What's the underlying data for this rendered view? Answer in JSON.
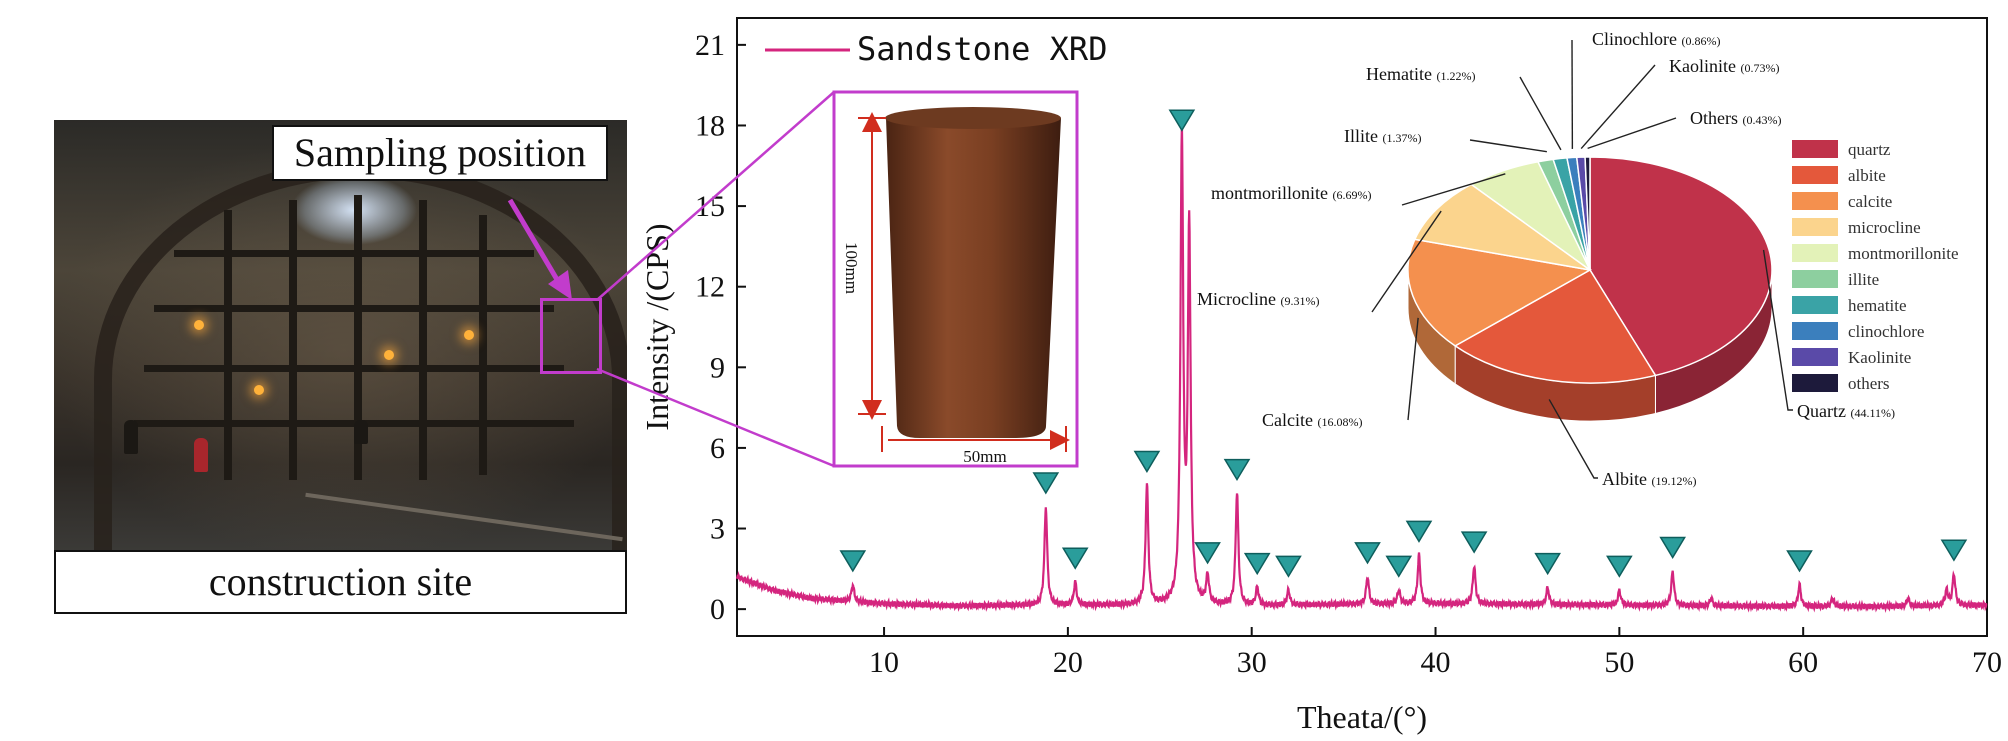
{
  "photo": {
    "sampling_label": "Sampling position",
    "caption": "construction site"
  },
  "sample": {
    "height_label": "100mm",
    "width_label": "50mm"
  },
  "chart_data": [
    {
      "type": "line",
      "series": [
        {
          "name": "Sandstone XRD",
          "color": "#d4257e",
          "background": [
            [
              2,
              1.2
            ],
            [
              4,
              0.7
            ],
            [
              6,
              0.4
            ],
            [
              8,
              0.3
            ],
            [
              10,
              0.2
            ],
            [
              14,
              0.12
            ],
            [
              18,
              0.15
            ],
            [
              22,
              0.15
            ],
            [
              26,
              0.15
            ],
            [
              30,
              0.12
            ],
            [
              35,
              0.18
            ],
            [
              40,
              0.2
            ],
            [
              45,
              0.18
            ],
            [
              50,
              0.15
            ],
            [
              55,
              0.12
            ],
            [
              60,
              0.1
            ],
            [
              65,
              0.1
            ],
            [
              70,
              0.15
            ]
          ],
          "peaks": [
            {
              "x": 8.3,
              "y": 0.9
            },
            {
              "x": 18.8,
              "y": 3.8
            },
            {
              "x": 20.4,
              "y": 1.0
            },
            {
              "x": 24.3,
              "y": 4.6
            },
            {
              "x": 26.2,
              "y": 17.3
            },
            {
              "x": 26.6,
              "y": 14.0
            },
            {
              "x": 27.6,
              "y": 1.2
            },
            {
              "x": 29.2,
              "y": 4.3
            },
            {
              "x": 30.3,
              "y": 0.8
            },
            {
              "x": 32.0,
              "y": 0.7
            },
            {
              "x": 36.3,
              "y": 1.2
            },
            {
              "x": 38.0,
              "y": 0.7
            },
            {
              "x": 39.1,
              "y": 2.0
            },
            {
              "x": 42.1,
              "y": 1.6
            },
            {
              "x": 46.1,
              "y": 0.8
            },
            {
              "x": 50.0,
              "y": 0.7
            },
            {
              "x": 52.9,
              "y": 1.4
            },
            {
              "x": 55.0,
              "y": 0.4
            },
            {
              "x": 59.8,
              "y": 0.9
            },
            {
              "x": 61.6,
              "y": 0.4
            },
            {
              "x": 65.7,
              "y": 0.4
            },
            {
              "x": 67.8,
              "y": 0.7
            },
            {
              "x": 68.2,
              "y": 1.3
            }
          ]
        }
      ],
      "marked_peaks_x": [
        8.3,
        18.8,
        20.4,
        24.3,
        26.2,
        27.6,
        29.2,
        30.3,
        32.0,
        36.3,
        38.0,
        39.1,
        42.1,
        46.1,
        50.0,
        52.9,
        59.8,
        68.2
      ],
      "xlabel": "Theata/(°)",
      "ylabel": "Intensity /(CPS)",
      "xlim": [
        2,
        70
      ],
      "ylim": [
        -1,
        22
      ],
      "xticks": [
        10,
        20,
        30,
        40,
        50,
        60,
        70
      ],
      "yticks": [
        0,
        3,
        6,
        9,
        12,
        15,
        18,
        21
      ],
      "legend": "top-left",
      "grid": false,
      "marker_color": "#2a9d9b"
    },
    {
      "type": "pie",
      "slices": [
        {
          "label": "Quartz",
          "pct_text": "(44.11%)",
          "legend": "quartz",
          "value": 44.11,
          "color": "#c0324a"
        },
        {
          "label": "Albite",
          "pct_text": "(19.12%)",
          "legend": "albite",
          "value": 19.12,
          "color": "#e4583b"
        },
        {
          "label": "Calcite",
          "pct_text": "(16.08%)",
          "legend": "calcite",
          "value": 16.08,
          "color": "#f4904e"
        },
        {
          "label": "Microcline",
          "pct_text": "(9.31%)",
          "legend": "microcline",
          "value": 9.31,
          "color": "#fbd48d"
        },
        {
          "label": "montmorillonite",
          "pct_text": "(6.69%)",
          "legend": "montmorillonite",
          "value": 6.69,
          "color": "#e3f2b8"
        },
        {
          "label": "Illite",
          "pct_text": "(1.37%)",
          "legend": "illite",
          "value": 1.37,
          "color": "#8dcf9f"
        },
        {
          "label": "Hematite",
          "pct_text": "(1.22%)",
          "legend": "hematite",
          "value": 1.22,
          "color": "#3aa3a6"
        },
        {
          "label": "Clinochlore",
          "pct_text": "(0.86%)",
          "legend": "clinochlore",
          "value": 0.86,
          "color": "#3b7fbd"
        },
        {
          "label": "Kaolinite",
          "pct_text": "(0.73%)",
          "legend": "Kaolinite",
          "value": 0.73,
          "color": "#5a4aa8"
        },
        {
          "label": "Others",
          "pct_text": "(0.43%)",
          "legend": "others",
          "value": 0.43,
          "color": "#1d1a3b"
        }
      ]
    }
  ]
}
